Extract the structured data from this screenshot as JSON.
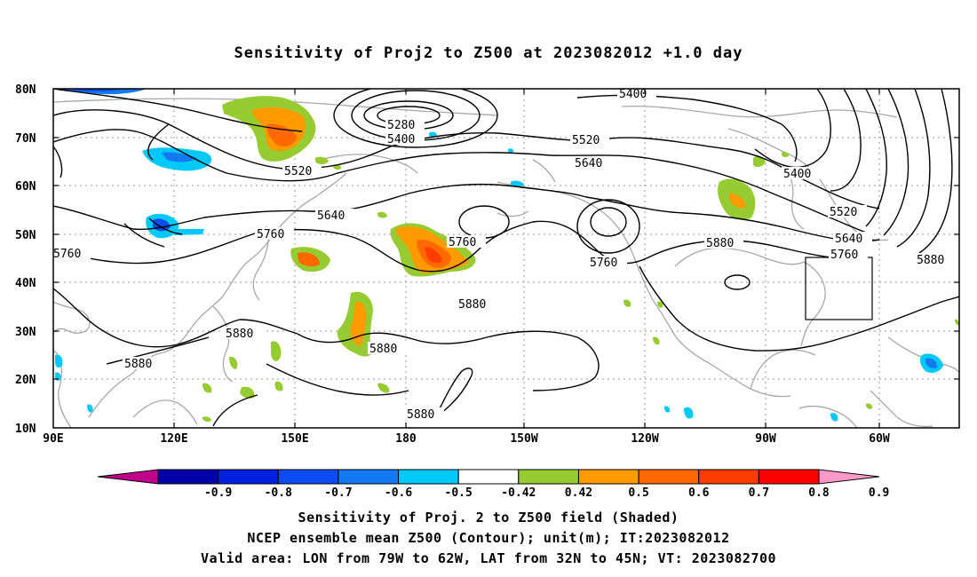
{
  "title": "Sensitivity of Proj2 to Z500 at 2023082012 +1.0 day",
  "lat_labels": [
    "80N",
    "70N",
    "60N",
    "50N",
    "40N",
    "30N",
    "20N",
    "10N"
  ],
  "lon_labels": [
    "90E",
    "120E",
    "150E",
    "180",
    "150W",
    "120W",
    "90W",
    "60W"
  ],
  "contour_labels": [
    {
      "text": "5400"
    },
    {
      "text": "5280"
    },
    {
      "text": "5400"
    },
    {
      "text": "5520"
    },
    {
      "text": "5520"
    },
    {
      "text": "5640"
    },
    {
      "text": "5640"
    },
    {
      "text": "5400"
    },
    {
      "text": "5520"
    },
    {
      "text": "5640"
    },
    {
      "text": "5760"
    },
    {
      "text": "5760"
    },
    {
      "text": "5760"
    },
    {
      "text": "5760"
    },
    {
      "text": "5760"
    },
    {
      "text": "5880"
    },
    {
      "text": "5880"
    },
    {
      "text": "5880"
    },
    {
      "text": "5880"
    },
    {
      "text": "5880"
    },
    {
      "text": "5880"
    },
    {
      "text": "5880"
    }
  ],
  "colorbar": {
    "labels": [
      "-0.9",
      "-0.8",
      "-0.7",
      "-0.6",
      "-0.5",
      "-0.42",
      "0.42",
      "0.5",
      "0.6",
      "0.7",
      "0.8",
      "0.9"
    ],
    "colors": [
      "#c0008a",
      "#0000a8",
      "#0020e0",
      "#0a4cf0",
      "#1478f0",
      "#00c8f8",
      "#ffffff",
      "#96cc32",
      "#ff9a00",
      "#ff6a00",
      "#ff3c00",
      "#ff0000",
      "#ff9ac8"
    ]
  },
  "footer": {
    "line1": "Sensitivity of Proj. 2 to Z500 field (Shaded)",
    "line2": "NCEP ensemble mean Z500 (Contour); unit(m); IT:2023082012",
    "line3": "Valid area: LON from 79W to 62W, LAT from 32N to 45N; VT: 2023082700"
  }
}
